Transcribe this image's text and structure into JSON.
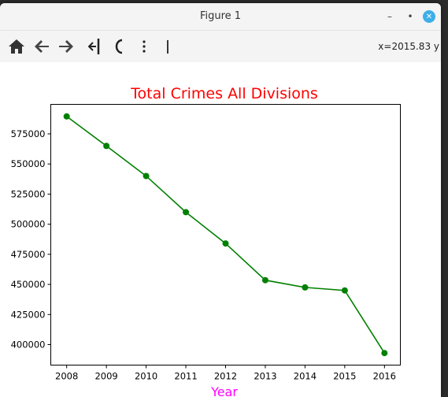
{
  "window": {
    "title": "Figure 1"
  },
  "toolbar": {
    "buttons": [
      {
        "name": "home-icon"
      },
      {
        "name": "back-arrow-icon"
      },
      {
        "name": "forward-arrow-icon"
      },
      {
        "name": "pan-icon"
      },
      {
        "name": "zoom-icon"
      },
      {
        "name": "configure-subplots-icon"
      },
      {
        "name": "edit-axis-icon"
      }
    ],
    "coordinate_readout": "x=2015.83 y"
  },
  "colors": {
    "line": "#008000",
    "title": "#ff0000",
    "xlabel": "#ff00ff",
    "close_button": "#3daee9"
  },
  "chart_data": {
    "type": "line",
    "title": "Total Crimes All Divisions",
    "xlabel": "Year",
    "ylabel": "",
    "x": [
      2008,
      2009,
      2010,
      2011,
      2012,
      2013,
      2014,
      2015,
      2016
    ],
    "series": [
      {
        "values": [
          589500,
          565000,
          540000,
          510000,
          484000,
          453500,
          447500,
          445000,
          393000
        ],
        "marker": "circle"
      }
    ],
    "x_ticks": [
      "2008",
      "2009",
      "2010",
      "2011",
      "2012",
      "2013",
      "2014",
      "2015",
      "2016"
    ],
    "y_ticks": [
      "400000",
      "425000",
      "450000",
      "475000",
      "500000",
      "525000",
      "550000",
      "575000"
    ],
    "xlim": [
      2007.6,
      2016.4
    ],
    "ylim": [
      383000,
      599500
    ],
    "grid": false
  }
}
